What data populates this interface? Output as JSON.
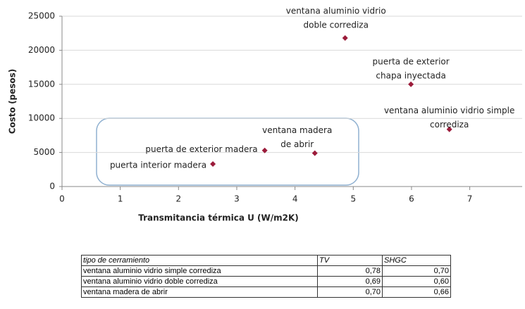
{
  "chart_data": {
    "type": "scatter",
    "xlabel": "Transmitancia térmica U (W/m2K)",
    "ylabel": "Costo (pesos)",
    "x": [
      4.86,
      5.99,
      6.65,
      4.34,
      3.48,
      2.59
    ],
    "values": [
      21800,
      15000,
      8400,
      4900,
      5300,
      3300
    ],
    "point_labels": [
      [
        "ventana aluminio vidrio",
        "doble corrediza"
      ],
      [
        "puerta de exterior",
        "chapa inyectada"
      ],
      [
        "ventana aluminio vidrio simple",
        "corrediza"
      ],
      [
        "ventana madera",
        "de abrir"
      ],
      [
        "puerta de exterior madera"
      ],
      [
        "puerta interior madera"
      ]
    ],
    "color": "#9b1b3a",
    "xlim": [
      0,
      7.9
    ],
    "xticks": [
      0,
      1,
      2,
      3,
      4,
      5,
      6,
      7
    ],
    "ylim": [
      0,
      25000
    ],
    "yticks": [
      0,
      5000,
      10000,
      15000,
      20000,
      25000
    ],
    "grid": true
  },
  "table": {
    "header": [
      "tipo de cerramiento",
      "TV",
      "SHGC"
    ],
    "rows": [
      [
        "ventana aluminio vidrio simple corrediza",
        "0,78",
        "0,70"
      ],
      [
        "ventana aluminio vidrio doble corrediza",
        "0,69",
        "0,60"
      ],
      [
        "ventana madera de abrir",
        "0,70",
        "0,66"
      ]
    ]
  }
}
